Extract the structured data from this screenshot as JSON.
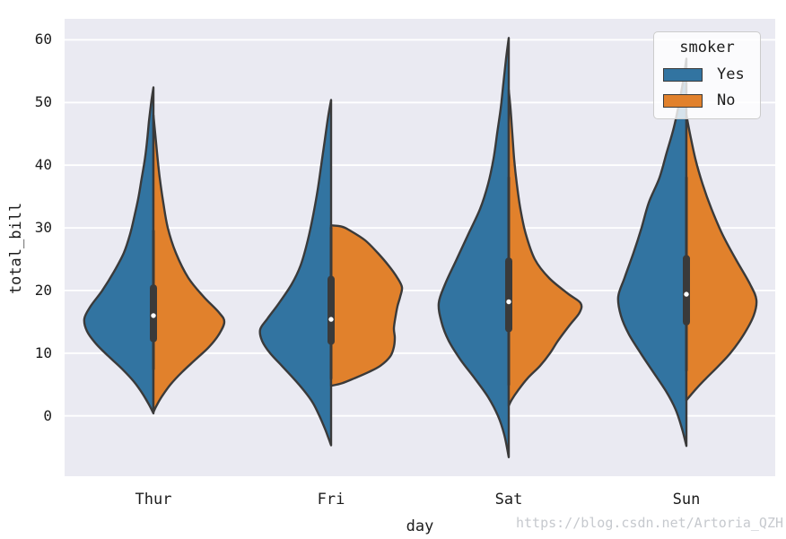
{
  "figure": {
    "background": "#ffffff",
    "axes_background": "#eaeaf2",
    "grid_color": "#ffffff",
    "edge_color": "#3a3a3a",
    "text_color": "#1c1c1c"
  },
  "watermark": "https://blog.csdn.net/Artoria_QZH",
  "legend": {
    "title": "smoker",
    "entries": [
      {
        "label": "Yes",
        "color": "#3274a1"
      },
      {
        "label": "No",
        "color": "#e1812c"
      }
    ]
  },
  "chart_data": {
    "type": "violin",
    "variant": "split-violin",
    "title": "",
    "xlabel": "day",
    "ylabel": "total_bill",
    "ylim": [
      -9.63,
      63.35
    ],
    "yticks": [
      0,
      10,
      20,
      30,
      40,
      50,
      60
    ],
    "categories": [
      "Thur",
      "Fri",
      "Sat",
      "Sun"
    ],
    "grid": "horizontal",
    "legend_position": "upper right",
    "hue": {
      "name": "smoker",
      "levels": [
        "Yes",
        "No"
      ],
      "colors": [
        "#3274a1",
        "#e1812c"
      ]
    },
    "violins": [
      {
        "category": "Thur",
        "box": {
          "q1": 12.3,
          "median": 16.0,
          "q3": 20.4,
          "whisker_low": 7.5,
          "whisker_high": 29.5
        },
        "sides": [
          {
            "level": "Yes",
            "dir": -1,
            "points": [
              [
                52.4,
                0
              ],
              [
                50,
                2.5
              ],
              [
                47,
                5
              ],
              [
                44,
                7
              ],
              [
                41,
                9.5
              ],
              [
                38,
                13
              ],
              [
                35,
                16.5
              ],
              [
                32,
                21
              ],
              [
                29,
                26
              ],
              [
                26,
                33
              ],
              [
                23,
                44
              ],
              [
                20,
                57
              ],
              [
                17.5,
                70
              ],
              [
                15.5,
                77
              ],
              [
                13.5,
                74
              ],
              [
                11.5,
                64
              ],
              [
                9.5,
                50
              ],
              [
                7.5,
                35
              ],
              [
                5.5,
                22
              ],
              [
                3.5,
                12
              ],
              [
                1.8,
                5
              ],
              [
                0.4,
                0
              ]
            ]
          },
          {
            "level": "No",
            "dir": 1,
            "points": [
              [
                48,
                0
              ],
              [
                45,
                2
              ],
              [
                42,
                4
              ],
              [
                38,
                7
              ],
              [
                34,
                11
              ],
              [
                30,
                16
              ],
              [
                26,
                25
              ],
              [
                22,
                39
              ],
              [
                19,
                56
              ],
              [
                16.5,
                73
              ],
              [
                15,
                79
              ],
              [
                13,
                73
              ],
              [
                11,
                62
              ],
              [
                9,
                47
              ],
              [
                7,
                32
              ],
              [
                5,
                19
              ],
              [
                3,
                9
              ],
              [
                1.5,
                3
              ],
              [
                0.6,
                0
              ]
            ]
          }
        ]
      },
      {
        "category": "Fri",
        "box": {
          "q1": 11.9,
          "median": 15.4,
          "q3": 21.8,
          "whisker_low": 6.0,
          "whisker_high": 30.0
        },
        "sides": [
          {
            "level": "Yes",
            "dir": -1,
            "points": [
              [
                50.4,
                0
              ],
              [
                48,
                3
              ],
              [
                44,
                7
              ],
              [
                40,
                11
              ],
              [
                36,
                15
              ],
              [
                32,
                20
              ],
              [
                28,
                26
              ],
              [
                24,
                34
              ],
              [
                21,
                44
              ],
              [
                18,
                58
              ],
              [
                15.5,
                71
              ],
              [
                13.8,
                79
              ],
              [
                12,
                77
              ],
              [
                10,
                68
              ],
              [
                8,
                55
              ],
              [
                6,
                42
              ],
              [
                4,
                30
              ],
              [
                2,
                20
              ],
              [
                0,
                13
              ],
              [
                -2,
                7
              ],
              [
                -3.5,
                3
              ],
              [
                -4.7,
                0
              ]
            ]
          },
          {
            "level": "No",
            "dir": 1,
            "points": [
              [
                30.4,
                0
              ],
              [
                30.2,
                12
              ],
              [
                29.5,
                22
              ],
              [
                28,
                38
              ],
              [
                26,
                52
              ],
              [
                24,
                64
              ],
              [
                22,
                74
              ],
              [
                20.5,
                79
              ],
              [
                19,
                77
              ],
              [
                17.5,
                74
              ],
              [
                16,
                72
              ],
              [
                14,
                70
              ],
              [
                12.5,
                71
              ],
              [
                11,
                70
              ],
              [
                9.5,
                66
              ],
              [
                8,
                55
              ],
              [
                7,
                42
              ],
              [
                6,
                26
              ],
              [
                5.2,
                12
              ],
              [
                4.8,
                0
              ]
            ]
          }
        ]
      },
      {
        "category": "Sat",
        "box": {
          "q1": 13.9,
          "median": 18.2,
          "q3": 24.7,
          "whisker_low": 5.0,
          "whisker_high": 38.0
        },
        "sides": [
          {
            "level": "Yes",
            "dir": -1,
            "points": [
              [
                60.3,
                0
              ],
              [
                57,
                3
              ],
              [
                53,
                6
              ],
              [
                49,
                9
              ],
              [
                45,
                13
              ],
              [
                41,
                17
              ],
              [
                37,
                23
              ],
              [
                33,
                32
              ],
              [
                29,
                45
              ],
              [
                25,
                58
              ],
              [
                21,
                71
              ],
              [
                18,
                78
              ],
              [
                15,
                75
              ],
              [
                12,
                67
              ],
              [
                9,
                54
              ],
              [
                6,
                38
              ],
              [
                3,
                23
              ],
              [
                0,
                12
              ],
              [
                -3,
                5
              ],
              [
                -6.6,
                0
              ]
            ]
          },
          {
            "level": "No",
            "dir": 1,
            "points": [
              [
                52,
                0
              ],
              [
                49,
                2
              ],
              [
                45,
                4
              ],
              [
                41,
                6
              ],
              [
                37,
                9
              ],
              [
                33,
                13
              ],
              [
                29,
                19
              ],
              [
                25,
                29
              ],
              [
                22,
                45
              ],
              [
                19.5,
                66
              ],
              [
                18,
                80
              ],
              [
                16.5,
                79
              ],
              [
                14.5,
                68
              ],
              [
                12,
                55
              ],
              [
                10,
                46
              ],
              [
                8,
                35
              ],
              [
                6,
                21
              ],
              [
                4,
                10
              ],
              [
                2.5,
                3
              ],
              [
                1.6,
                0
              ]
            ]
          }
        ]
      },
      {
        "category": "Sun",
        "box": {
          "q1": 15.0,
          "median": 19.4,
          "q3": 25.1,
          "whisker_low": 7.3,
          "whisker_high": 38.0
        },
        "sides": [
          {
            "level": "Yes",
            "dir": -1,
            "points": [
              [
                57,
                0
              ],
              [
                54,
                3
              ],
              [
                50,
                8
              ],
              [
                46,
                14
              ],
              [
                42,
                22
              ],
              [
                38,
                30
              ],
              [
                34,
                42
              ],
              [
                30,
                50
              ],
              [
                26,
                59
              ],
              [
                22,
                69
              ],
              [
                19,
                76
              ],
              [
                16,
                73
              ],
              [
                13,
                64
              ],
              [
                10,
                51
              ],
              [
                7,
                37
              ],
              [
                4,
                23
              ],
              [
                1,
                12
              ],
              [
                -2,
                5
              ],
              [
                -4.8,
                0
              ]
            ]
          },
          {
            "level": "No",
            "dir": 1,
            "points": [
              [
                48,
                0
              ],
              [
                45,
                4
              ],
              [
                41,
                10
              ],
              [
                37,
                18
              ],
              [
                33,
                28
              ],
              [
                29,
                40
              ],
              [
                25,
                55
              ],
              [
                21,
                71
              ],
              [
                18.5,
                78
              ],
              [
                16,
                75
              ],
              [
                13,
                64
              ],
              [
                10,
                49
              ],
              [
                8,
                36
              ],
              [
                6,
                22
              ],
              [
                4.5,
                12
              ],
              [
                2.5,
                0
              ]
            ]
          }
        ]
      }
    ]
  }
}
